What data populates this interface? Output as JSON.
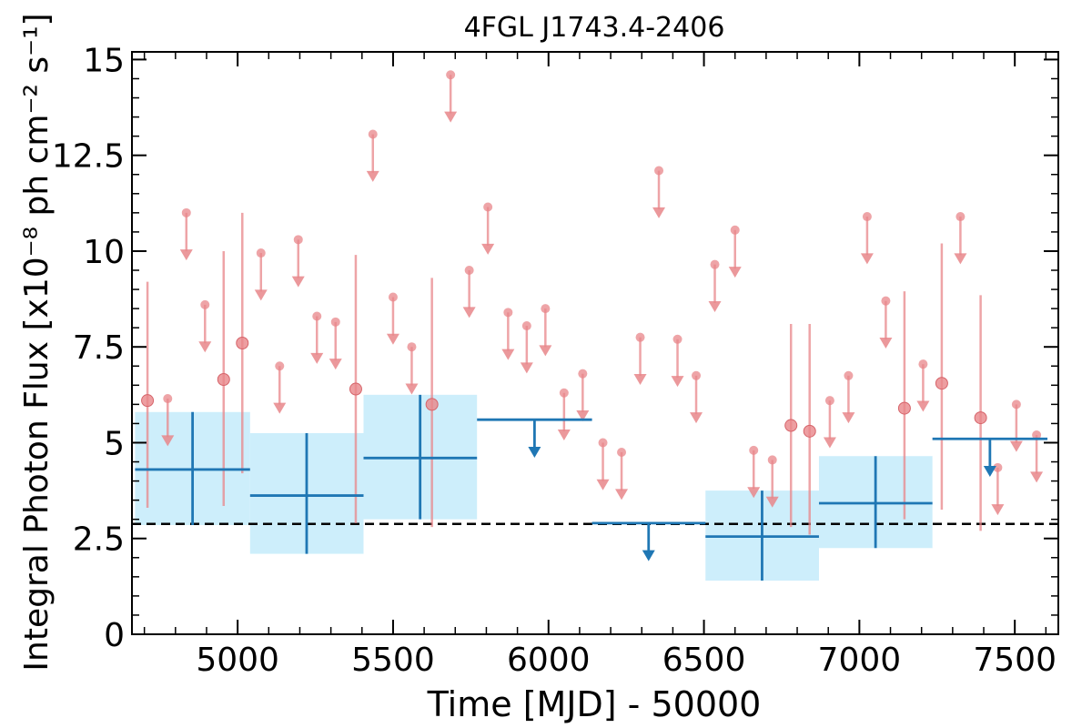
{
  "chart_data": {
    "type": "scatter",
    "title": "4FGL J1743.4-2406",
    "xlabel": "Time [MJD] - 50000",
    "ylabel": "Integral Photon Flux [x10⁻⁸ ph cm⁻² s⁻¹]",
    "xlim": [
      4660,
      7640
    ],
    "ylim": [
      0,
      15.2
    ],
    "xticks": [
      5000,
      5500,
      6000,
      6500,
      7000,
      7500
    ],
    "xtick_labels": [
      "5000",
      "5500",
      "6000",
      "6500",
      "7000",
      "7500"
    ],
    "yticks": [
      0,
      2.5,
      5,
      7.5,
      10,
      12.5,
      15
    ],
    "ytick_labels": [
      "0",
      "2.5",
      "5",
      "7.5",
      "10",
      "12.5",
      "15"
    ],
    "reference_level": 2.88,
    "colors": {
      "short_bins": "#e8868a",
      "long_bins": "#1f77b4",
      "long_bins_band": "#cdeefb",
      "reference_line": "#000000"
    },
    "series": [
      {
        "kind": "short_bin_detections",
        "points": [
          {
            "x": 4710,
            "y": 6.1,
            "ylo": 3.3,
            "yhi": 9.2
          },
          {
            "x": 4955,
            "y": 6.65,
            "ylo": 3.35,
            "yhi": 10.0
          },
          {
            "x": 5015,
            "y": 7.6,
            "ylo": 4.2,
            "yhi": 11.0
          },
          {
            "x": 5380,
            "y": 6.4,
            "ylo": 2.9,
            "yhi": 9.9
          },
          {
            "x": 5625,
            "y": 6.0,
            "ylo": 2.8,
            "yhi": 9.3
          },
          {
            "x": 6780,
            "y": 5.45,
            "ylo": 2.8,
            "yhi": 8.1
          },
          {
            "x": 6840,
            "y": 5.3,
            "ylo": 2.6,
            "yhi": 8.1
          },
          {
            "x": 7145,
            "y": 5.9,
            "ylo": 3.0,
            "yhi": 8.95
          },
          {
            "x": 7265,
            "y": 6.55,
            "ylo": 3.25,
            "yhi": 10.2
          },
          {
            "x": 7390,
            "y": 5.65,
            "ylo": 2.7,
            "yhi": 8.85
          }
        ]
      },
      {
        "kind": "short_bin_upper_limits",
        "points": [
          {
            "x": 4775,
            "y": 6.15
          },
          {
            "x": 4835,
            "y": 11.0
          },
          {
            "x": 4895,
            "y": 8.6
          },
          {
            "x": 5075,
            "y": 9.95
          },
          {
            "x": 5135,
            "y": 7.0
          },
          {
            "x": 5195,
            "y": 10.3
          },
          {
            "x": 5255,
            "y": 8.3
          },
          {
            "x": 5315,
            "y": 8.15
          },
          {
            "x": 5435,
            "y": 13.05
          },
          {
            "x": 5500,
            "y": 8.8
          },
          {
            "x": 5560,
            "y": 7.5
          },
          {
            "x": 5685,
            "y": 14.6
          },
          {
            "x": 5745,
            "y": 9.5
          },
          {
            "x": 5805,
            "y": 11.15
          },
          {
            "x": 5870,
            "y": 8.4
          },
          {
            "x": 5930,
            "y": 8.05
          },
          {
            "x": 5990,
            "y": 8.5
          },
          {
            "x": 6050,
            "y": 6.3
          },
          {
            "x": 6110,
            "y": 6.8
          },
          {
            "x": 6175,
            "y": 5.0
          },
          {
            "x": 6235,
            "y": 4.75
          },
          {
            "x": 6295,
            "y": 7.75
          },
          {
            "x": 6355,
            "y": 12.1
          },
          {
            "x": 6415,
            "y": 7.7
          },
          {
            "x": 6475,
            "y": 6.75
          },
          {
            "x": 6535,
            "y": 9.65
          },
          {
            "x": 6600,
            "y": 10.55
          },
          {
            "x": 6660,
            "y": 4.8
          },
          {
            "x": 6720,
            "y": 4.55
          },
          {
            "x": 6905,
            "y": 6.1
          },
          {
            "x": 6965,
            "y": 6.75
          },
          {
            "x": 7025,
            "y": 10.9
          },
          {
            "x": 7085,
            "y": 8.7
          },
          {
            "x": 7205,
            "y": 7.05
          },
          {
            "x": 7325,
            "y": 10.9
          },
          {
            "x": 7445,
            "y": 4.35
          },
          {
            "x": 7505,
            "y": 6.0
          },
          {
            "x": 7570,
            "y": 5.2
          }
        ]
      },
      {
        "kind": "long_bin_detections",
        "points": [
          {
            "x0": 4670,
            "x1": 5040,
            "xc": 4855,
            "y": 4.3,
            "ylo": 2.85,
            "yhi": 5.8
          },
          {
            "x0": 5040,
            "x1": 5405,
            "xc": 5222,
            "y": 3.62,
            "ylo": 2.1,
            "yhi": 5.25
          },
          {
            "x0": 5405,
            "x1": 5770,
            "xc": 5587,
            "y": 4.6,
            "ylo": 3.0,
            "yhi": 6.25
          },
          {
            "x0": 6505,
            "x1": 6870,
            "xc": 6687,
            "y": 2.55,
            "ylo": 1.4,
            "yhi": 3.75
          },
          {
            "x0": 6870,
            "x1": 7235,
            "xc": 7052,
            "y": 3.42,
            "ylo": 2.25,
            "yhi": 4.65
          }
        ]
      },
      {
        "kind": "long_bin_upper_limits",
        "points": [
          {
            "x0": 5770,
            "x1": 6140,
            "xc": 5955,
            "y": 5.6
          },
          {
            "x0": 6140,
            "x1": 6505,
            "xc": 6322,
            "y": 2.9
          },
          {
            "x0": 7235,
            "x1": 7605,
            "xc": 7420,
            "y": 5.1
          }
        ]
      }
    ]
  }
}
